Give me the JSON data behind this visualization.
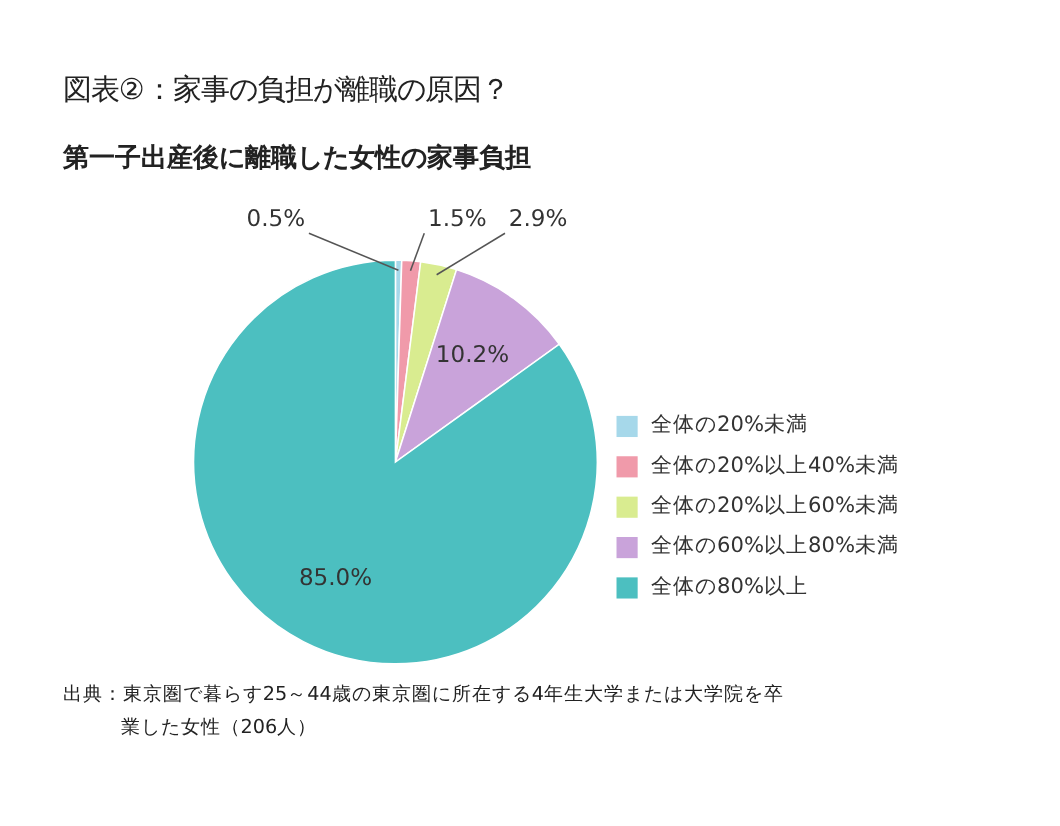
{
  "chart_data": {
    "type": "pie",
    "title": "図表②：家事の負担が離職の原因？",
    "subtitle": "第一子出産後に離職した女性の家事負担",
    "categories": [
      "全体の20%未満",
      "全体の20%以上40%未満",
      "全体の20%以上60%未満",
      "全体の60%以上80%未満",
      "全体の80%以上"
    ],
    "values": [
      0.5,
      1.5,
      2.9,
      10.2,
      85.0
    ],
    "value_labels": [
      "0.5%",
      "1.5%",
      "2.9%",
      "10.2%",
      "85.0%"
    ],
    "colors": [
      "#a6d8ea",
      "#f09aaa",
      "#d9ec90",
      "#c9a3da",
      "#4cbfc0"
    ],
    "legend": "right",
    "annotations": [
      "出典：東京圏で暮らす25～44歳の東京圏に所在する4年生大学または大学院を卒業した女性（206人）"
    ]
  }
}
